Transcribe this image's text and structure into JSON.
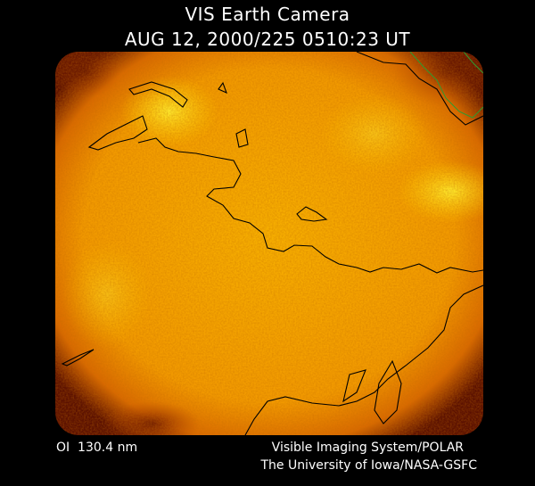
{
  "header": {
    "title": "VIS Earth Camera",
    "timestamp": "AUG 12, 2000/225 0510:23 UT"
  },
  "footer": {
    "band": "OI  130.4 nm",
    "instrument": "Visible Imaging System/POLAR",
    "credit": "The University of Iowa/NASA-GSFC"
  }
}
